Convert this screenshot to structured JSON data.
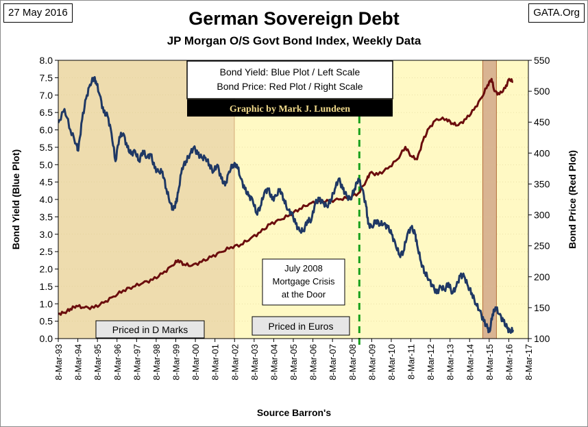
{
  "header": {
    "date": "27 May 2016",
    "source_site": "GATA.Org",
    "title": "German Sovereign Debt",
    "subtitle": "JP Morgan O/S Govt Bond Index, Weekly Data"
  },
  "colors": {
    "yield_line": "#1f3864",
    "price_line": "#6b0d0d",
    "dmark_fill": "#eedcae",
    "euro_fill": "#fff9c4",
    "recent_fill": "#d9b492",
    "crisis_line": "#18a01c"
  },
  "chart_data": {
    "type": "line",
    "title": "German Sovereign Debt",
    "subtitle": "JP Morgan O/S Govt Bond Index, Weekly Data",
    "xlabel": "Source Barron's",
    "ylabel_left": "Bond Yield  (Blue Plot)",
    "ylabel_right": "Bond Price  (Red Plot)",
    "ylim_left": [
      0,
      8
    ],
    "ylim_right": [
      100,
      550
    ],
    "xlim": [
      1993.18,
      2017.18
    ],
    "y_ticks_left": [
      "0.0",
      "0.5",
      "1.0",
      "1.5",
      "2.0",
      "2.5",
      "3.0",
      "3.5",
      "4.0",
      "4.5",
      "5.0",
      "5.5",
      "6.0",
      "6.5",
      "7.0",
      "7.5",
      "8.0"
    ],
    "y_ticks_right": [
      "100",
      "150",
      "200",
      "250",
      "300",
      "350",
      "400",
      "450",
      "500",
      "550"
    ],
    "x_tick_labels": [
      "8-Mar-93",
      "8-Mar-94",
      "8-Mar-95",
      "8-Mar-96",
      "8-Mar-97",
      "8-Mar-98",
      "8-Mar-99",
      "8-Mar-00",
      "8-Mar-01",
      "8-Mar-02",
      "8-Mar-03",
      "8-Mar-04",
      "8-Mar-05",
      "8-Mar-06",
      "8-Mar-07",
      "8-Mar-08",
      "8-Mar-09",
      "8-Mar-10",
      "8-Mar-11",
      "8-Mar-12",
      "8-Mar-13",
      "8-Mar-14",
      "8-Mar-15",
      "8-Mar-16",
      "8-Mar-17"
    ],
    "legend": [
      "Bond Yield: Blue Plot / Left Scale",
      "Bond Price: Red Plot / Right Scale"
    ],
    "credit": "Graphic by Mark J. Lundeen",
    "regions": [
      {
        "label": "Priced in D Marks",
        "start": 1993.18,
        "end": 2002.18
      },
      {
        "label": "Priced in Euros",
        "start": 2002.18,
        "end": 2017.18
      },
      {
        "label": "",
        "start": 2014.85,
        "end": 2015.55
      }
    ],
    "annotation": {
      "lines": [
        "July 2008",
        "Mortgage Crisis",
        "at the Door"
      ],
      "x": 2008.55
    },
    "series": [
      {
        "name": "Bond Yield",
        "axis": "left",
        "points": [
          [
            1993.18,
            6.2
          ],
          [
            1993.5,
            6.6
          ],
          [
            1993.8,
            6.0
          ],
          [
            1994.1,
            5.6
          ],
          [
            1994.2,
            5.4
          ],
          [
            1994.4,
            6.3
          ],
          [
            1994.6,
            6.9
          ],
          [
            1994.8,
            7.3
          ],
          [
            1995.0,
            7.5
          ],
          [
            1995.1,
            7.4
          ],
          [
            1995.3,
            7.0
          ],
          [
            1995.5,
            6.5
          ],
          [
            1995.7,
            6.4
          ],
          [
            1995.9,
            5.9
          ],
          [
            1996.1,
            5.1
          ],
          [
            1996.3,
            5.8
          ],
          [
            1996.5,
            5.9
          ],
          [
            1996.7,
            5.5
          ],
          [
            1996.9,
            5.3
          ],
          [
            1997.1,
            5.4
          ],
          [
            1997.3,
            5.1
          ],
          [
            1997.5,
            5.4
          ],
          [
            1997.7,
            5.2
          ],
          [
            1997.9,
            5.3
          ],
          [
            1998.1,
            4.9
          ],
          [
            1998.3,
            4.8
          ],
          [
            1998.5,
            4.8
          ],
          [
            1998.7,
            4.3
          ],
          [
            1998.9,
            3.9
          ],
          [
            1999.05,
            3.7
          ],
          [
            1999.2,
            3.9
          ],
          [
            1999.3,
            4.2
          ],
          [
            1999.5,
            4.9
          ],
          [
            1999.7,
            5.1
          ],
          [
            1999.9,
            5.3
          ],
          [
            2000.1,
            5.5
          ],
          [
            2000.3,
            5.3
          ],
          [
            2000.5,
            5.2
          ],
          [
            2000.7,
            5.2
          ],
          [
            2000.9,
            5.0
          ],
          [
            2001.1,
            4.8
          ],
          [
            2001.3,
            5.0
          ],
          [
            2001.5,
            4.6
          ],
          [
            2001.7,
            4.4
          ],
          [
            2001.9,
            4.8
          ],
          [
            2002.1,
            5.0
          ],
          [
            2002.3,
            5.0
          ],
          [
            2002.5,
            4.6
          ],
          [
            2002.7,
            4.3
          ],
          [
            2002.9,
            4.1
          ],
          [
            2003.1,
            4.0
          ],
          [
            2003.3,
            3.6
          ],
          [
            2003.5,
            3.8
          ],
          [
            2003.7,
            4.2
          ],
          [
            2003.9,
            4.3
          ],
          [
            2004.1,
            4.0
          ],
          [
            2004.3,
            4.1
          ],
          [
            2004.5,
            4.3
          ],
          [
            2004.7,
            4.0
          ],
          [
            2004.9,
            3.7
          ],
          [
            2005.1,
            3.6
          ],
          [
            2005.3,
            3.3
          ],
          [
            2005.5,
            3.1
          ],
          [
            2005.7,
            3.1
          ],
          [
            2005.9,
            3.4
          ],
          [
            2006.1,
            3.4
          ],
          [
            2006.3,
            3.9
          ],
          [
            2006.5,
            4.0
          ],
          [
            2006.7,
            3.9
          ],
          [
            2006.9,
            3.8
          ],
          [
            2007.1,
            4.0
          ],
          [
            2007.3,
            4.3
          ],
          [
            2007.5,
            4.6
          ],
          [
            2007.7,
            4.3
          ],
          [
            2007.9,
            4.1
          ],
          [
            2008.1,
            4.0
          ],
          [
            2008.3,
            4.3
          ],
          [
            2008.5,
            4.6
          ],
          [
            2008.7,
            4.3
          ],
          [
            2008.9,
            3.8
          ],
          [
            2009.0,
            3.3
          ],
          [
            2009.2,
            3.2
          ],
          [
            2009.4,
            3.4
          ],
          [
            2009.6,
            3.3
          ],
          [
            2009.8,
            3.3
          ],
          [
            2010.0,
            3.2
          ],
          [
            2010.2,
            3.0
          ],
          [
            2010.4,
            2.7
          ],
          [
            2010.6,
            2.4
          ],
          [
            2010.8,
            2.5
          ],
          [
            2011.0,
            3.0
          ],
          [
            2011.2,
            3.2
          ],
          [
            2011.4,
            3.0
          ],
          [
            2011.5,
            2.7
          ],
          [
            2011.7,
            2.2
          ],
          [
            2011.9,
            1.9
          ],
          [
            2012.1,
            1.7
          ],
          [
            2012.3,
            1.5
          ],
          [
            2012.5,
            1.3
          ],
          [
            2012.7,
            1.5
          ],
          [
            2012.9,
            1.4
          ],
          [
            2013.1,
            1.6
          ],
          [
            2013.3,
            1.3
          ],
          [
            2013.5,
            1.5
          ],
          [
            2013.7,
            1.8
          ],
          [
            2013.9,
            1.8
          ],
          [
            2014.1,
            1.5
          ],
          [
            2014.3,
            1.3
          ],
          [
            2014.5,
            1.0
          ],
          [
            2014.7,
            0.8
          ],
          [
            2014.9,
            0.5
          ],
          [
            2015.1,
            0.3
          ],
          [
            2015.2,
            0.2
          ],
          [
            2015.35,
            0.7
          ],
          [
            2015.5,
            0.9
          ],
          [
            2015.7,
            0.7
          ],
          [
            2015.9,
            0.5
          ],
          [
            2016.1,
            0.3
          ],
          [
            2016.25,
            0.2
          ],
          [
            2016.4,
            0.25
          ]
        ]
      },
      {
        "name": "Bond Price",
        "axis": "right",
        "points": [
          [
            1993.18,
            140
          ],
          [
            1993.5,
            142
          ],
          [
            1993.8,
            148
          ],
          [
            1994.1,
            153
          ],
          [
            1994.5,
            150
          ],
          [
            1995.0,
            150
          ],
          [
            1995.5,
            158
          ],
          [
            1996.0,
            168
          ],
          [
            1996.5,
            178
          ],
          [
            1997.0,
            184
          ],
          [
            1997.5,
            190
          ],
          [
            1998.0,
            195
          ],
          [
            1998.5,
            205
          ],
          [
            1999.0,
            218
          ],
          [
            1999.3,
            227
          ],
          [
            1999.6,
            220
          ],
          [
            2000.0,
            218
          ],
          [
            2000.5,
            224
          ],
          [
            2001.0,
            232
          ],
          [
            2001.5,
            240
          ],
          [
            2002.0,
            248
          ],
          [
            2002.5,
            252
          ],
          [
            2003.0,
            262
          ],
          [
            2003.5,
            272
          ],
          [
            2004.0,
            285
          ],
          [
            2004.5,
            292
          ],
          [
            2005.0,
            300
          ],
          [
            2005.5,
            310
          ],
          [
            2006.0,
            318
          ],
          [
            2006.5,
            322
          ],
          [
            2007.0,
            322
          ],
          [
            2007.5,
            325
          ],
          [
            2008.0,
            328
          ],
          [
            2008.5,
            335
          ],
          [
            2008.9,
            355
          ],
          [
            2009.1,
            368
          ],
          [
            2009.5,
            365
          ],
          [
            2010.0,
            375
          ],
          [
            2010.5,
            390
          ],
          [
            2010.9,
            410
          ],
          [
            2011.2,
            395
          ],
          [
            2011.5,
            390
          ],
          [
            2011.8,
            420
          ],
          [
            2012.1,
            440
          ],
          [
            2012.5,
            455
          ],
          [
            2013.0,
            455
          ],
          [
            2013.3,
            448
          ],
          [
            2013.6,
            445
          ],
          [
            2014.0,
            455
          ],
          [
            2014.4,
            470
          ],
          [
            2014.8,
            490
          ],
          [
            2015.1,
            510
          ],
          [
            2015.3,
            520
          ],
          [
            2015.45,
            500
          ],
          [
            2015.7,
            495
          ],
          [
            2016.0,
            505
          ],
          [
            2016.2,
            520
          ],
          [
            2016.4,
            515
          ]
        ]
      }
    ]
  }
}
